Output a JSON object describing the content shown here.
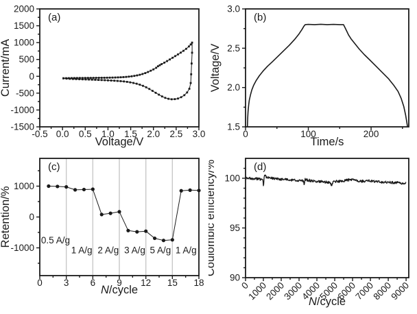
{
  "figure": {
    "background": "#ffffff",
    "ink_color": "#1a1a1a",
    "grid_color": "#c8c8c8"
  },
  "chart_data": [
    {
      "id": "a",
      "type": "line",
      "panel_label": "(a)",
      "xlabel": "Voltage/V",
      "ylabel": "Current/mA",
      "xlim": [
        -0.5,
        3.0
      ],
      "ylim": [
        -1500,
        2000
      ],
      "xticks": [
        -0.5,
        0.0,
        0.5,
        1.0,
        1.5,
        2.0,
        2.5,
        3.0
      ],
      "xtick_labels": [
        "-0.5",
        "0.0",
        "0.5",
        "1.0",
        "1.5",
        "2.0",
        "2.5",
        "3.0"
      ],
      "yticks": [
        -1500,
        -1000,
        -500,
        0,
        500,
        1000,
        1500,
        2000
      ],
      "ytick_labels": [
        "-1500",
        "-1000",
        "-500",
        "0",
        "500",
        "1000",
        "1500",
        "2000"
      ],
      "xminor": [
        -0.25,
        0.25,
        0.75,
        1.25,
        1.75,
        2.25,
        2.75
      ],
      "yminor": [
        -1250,
        -750,
        -250,
        250,
        750,
        1250,
        1750
      ],
      "grid": false,
      "series": [
        {
          "name": "cv-curve",
          "marker": "square",
          "line_width": 1,
          "points": [
            [
              0.02,
              -58
            ],
            [
              0.08,
              -56
            ],
            [
              0.14,
              -55
            ],
            [
              0.2,
              -53
            ],
            [
              0.26,
              -52
            ],
            [
              0.32,
              -51
            ],
            [
              0.38,
              -50
            ],
            [
              0.44,
              -50
            ],
            [
              0.5,
              -49
            ],
            [
              0.56,
              -48
            ],
            [
              0.62,
              -48
            ],
            [
              0.68,
              -47
            ],
            [
              0.74,
              -46
            ],
            [
              0.8,
              -45
            ],
            [
              0.86,
              -44
            ],
            [
              0.92,
              -43
            ],
            [
              0.98,
              -42
            ],
            [
              1.04,
              -40
            ],
            [
              1.1,
              -38
            ],
            [
              1.16,
              -36
            ],
            [
              1.22,
              -33
            ],
            [
              1.28,
              -29
            ],
            [
              1.34,
              -24
            ],
            [
              1.4,
              -18
            ],
            [
              1.46,
              -10
            ],
            [
              1.52,
              0
            ],
            [
              1.58,
              12
            ],
            [
              1.64,
              27
            ],
            [
              1.7,
              45
            ],
            [
              1.76,
              68
            ],
            [
              1.82,
              95
            ],
            [
              1.88,
              128
            ],
            [
              1.94,
              165
            ],
            [
              2.0,
              205
            ],
            [
              2.06,
              252
            ],
            [
              2.1,
              298
            ],
            [
              2.14,
              330
            ],
            [
              2.18,
              362
            ],
            [
              2.24,
              405
            ],
            [
              2.3,
              452
            ],
            [
              2.36,
              500
            ],
            [
              2.42,
              550
            ],
            [
              2.48,
              600
            ],
            [
              2.54,
              650
            ],
            [
              2.6,
              702
            ],
            [
              2.66,
              756
            ],
            [
              2.72,
              815
            ],
            [
              2.78,
              885
            ],
            [
              2.82,
              945
            ],
            [
              2.85,
              1000
            ],
            [
              2.85,
              700
            ],
            [
              2.84,
              380
            ],
            [
              2.83,
              60
            ],
            [
              2.82,
              -200
            ],
            [
              2.79,
              -370
            ],
            [
              2.74,
              -480
            ],
            [
              2.68,
              -560
            ],
            [
              2.61,
              -620
            ],
            [
              2.54,
              -660
            ],
            [
              2.47,
              -678
            ],
            [
              2.4,
              -682
            ],
            [
              2.33,
              -668
            ],
            [
              2.26,
              -640
            ],
            [
              2.19,
              -598
            ],
            [
              2.12,
              -545
            ],
            [
              2.05,
              -490
            ],
            [
              1.98,
              -432
            ],
            [
              1.91,
              -376
            ],
            [
              1.84,
              -326
            ],
            [
              1.77,
              -283
            ],
            [
              1.7,
              -248
            ],
            [
              1.63,
              -220
            ],
            [
              1.56,
              -198
            ],
            [
              1.49,
              -180
            ],
            [
              1.42,
              -165
            ],
            [
              1.35,
              -153
            ],
            [
              1.28,
              -144
            ],
            [
              1.21,
              -137
            ],
            [
              1.14,
              -131
            ],
            [
              1.07,
              -126
            ],
            [
              1.0,
              -121
            ],
            [
              0.93,
              -116
            ],
            [
              0.86,
              -112
            ],
            [
              0.79,
              -108
            ],
            [
              0.72,
              -104
            ],
            [
              0.65,
              -100
            ],
            [
              0.58,
              -96
            ],
            [
              0.51,
              -93
            ],
            [
              0.44,
              -90
            ],
            [
              0.37,
              -86
            ],
            [
              0.3,
              -83
            ],
            [
              0.23,
              -79
            ],
            [
              0.16,
              -74
            ],
            [
              0.09,
              -68
            ],
            [
              0.02,
              -62
            ]
          ]
        }
      ]
    },
    {
      "id": "b",
      "type": "line",
      "panel_label": "(b)",
      "xlabel": "Time/s",
      "ylabel": "Voltage/V",
      "xlim": [
        0,
        260
      ],
      "ylim": [
        1.5,
        3.0
      ],
      "xticks": [
        0,
        100,
        200
      ],
      "xtick_labels": [
        "0",
        "100",
        "200"
      ],
      "yticks": [
        1.5,
        2.0,
        2.5,
        3.0
      ],
      "ytick_labels": [
        "1.5",
        "2.0",
        "2.5",
        "3.0"
      ],
      "xminor": [
        50,
        150,
        250
      ],
      "yminor": [
        1.75,
        2.25,
        2.75
      ],
      "grid": false,
      "series": [
        {
          "name": "charge-discharge",
          "marker": "none",
          "line_width": 1.6,
          "points": [
            [
              3,
              1.5
            ],
            [
              3.5,
              1.62
            ],
            [
              4,
              1.7
            ],
            [
              5,
              1.78
            ],
            [
              6,
              1.84
            ],
            [
              8,
              1.91
            ],
            [
              10,
              1.97
            ],
            [
              13,
              2.03
            ],
            [
              17,
              2.09
            ],
            [
              22,
              2.15
            ],
            [
              28,
              2.21
            ],
            [
              35,
              2.27
            ],
            [
              43,
              2.33
            ],
            [
              52,
              2.4
            ],
            [
              61,
              2.47
            ],
            [
              70,
              2.54
            ],
            [
              78,
              2.61
            ],
            [
              85,
              2.68
            ],
            [
              90,
              2.74
            ],
            [
              93,
              2.78
            ],
            [
              95,
              2.8
            ],
            [
              100,
              2.803
            ],
            [
              110,
              2.8
            ],
            [
              120,
              2.805
            ],
            [
              130,
              2.8
            ],
            [
              140,
              2.803
            ],
            [
              150,
              2.8
            ],
            [
              156,
              2.8
            ],
            [
              158,
              2.77
            ],
            [
              161,
              2.72
            ],
            [
              164,
              2.67
            ],
            [
              168,
              2.62
            ],
            [
              174,
              2.56
            ],
            [
              181,
              2.49
            ],
            [
              189,
              2.42
            ],
            [
              198,
              2.35
            ],
            [
              208,
              2.27
            ],
            [
              218,
              2.19
            ],
            [
              228,
              2.11
            ],
            [
              236,
              2.03
            ],
            [
              243,
              1.95
            ],
            [
              248,
              1.86
            ],
            [
              252,
              1.76
            ],
            [
              255,
              1.65
            ],
            [
              257,
              1.55
            ],
            [
              258,
              1.5
            ]
          ]
        }
      ]
    },
    {
      "id": "c",
      "type": "line",
      "panel_label": "(c)",
      "xlabel": "N/cycle",
      "xlabel_italic_chars": 1,
      "ylabel": "Retention/%",
      "xlim": [
        0,
        18
      ],
      "ylim": [
        -1900,
        1900
      ],
      "xticks": [
        0,
        3,
        6,
        9,
        12,
        15,
        18
      ],
      "xtick_labels": [
        "0",
        "3",
        "6",
        "9",
        "12",
        "15",
        "18"
      ],
      "yticks": [
        -1000,
        0,
        1000
      ],
      "ytick_labels": [
        "-1000",
        "0",
        "1000"
      ],
      "xminor": [
        1.5,
        4.5,
        7.5,
        10.5,
        13.5,
        16.5
      ],
      "yminor": [
        -1500,
        -500,
        500,
        1500
      ],
      "grid": true,
      "gridlines_x": [
        3,
        6,
        9,
        12,
        15
      ],
      "annotations": [
        {
          "text": "0.5 A/g",
          "x": 0.15,
          "y": -850
        },
        {
          "text": "1 A/g",
          "x": 3.55,
          "y": -1180
        },
        {
          "text": "2 A/g",
          "x": 6.55,
          "y": -1180
        },
        {
          "text": "3 A/g",
          "x": 9.55,
          "y": -1180
        },
        {
          "text": "5 A/g",
          "x": 12.45,
          "y": -1180
        },
        {
          "text": "1 A/g",
          "x": 15.35,
          "y": -1180
        }
      ],
      "series": [
        {
          "name": "rate-retention",
          "marker": "circle",
          "line_width": 1,
          "points": [
            [
              1,
              1000
            ],
            [
              2,
              990
            ],
            [
              3,
              975
            ],
            [
              4,
              880
            ],
            [
              5,
              890
            ],
            [
              6,
              900
            ],
            [
              7,
              80
            ],
            [
              8,
              120
            ],
            [
              9,
              170
            ],
            [
              10,
              -440
            ],
            [
              11,
              -480
            ],
            [
              12,
              -460
            ],
            [
              13,
              -690
            ],
            [
              14,
              -760
            ],
            [
              15,
              -740
            ],
            [
              16,
              850
            ],
            [
              17,
              870
            ],
            [
              18,
              860
            ]
          ]
        }
      ]
    },
    {
      "id": "d",
      "type": "line",
      "panel_label": "(d)",
      "xlabel": "N/cycle",
      "xlabel_italic_chars": 1,
      "ylabel": "Coulombic efficiency/%",
      "xlim": [
        0,
        9150
      ],
      "ylim": [
        90,
        102
      ],
      "xticks": [
        0,
        1000,
        2000,
        3000,
        4000,
        5000,
        6000,
        7000,
        8000,
        9000
      ],
      "xtick_labels": [
        "0",
        "1000",
        "2000",
        "3000",
        "4000",
        "5000",
        "6000",
        "7000",
        "8000",
        "9000"
      ],
      "xtick_rotation": -45,
      "yticks": [
        90,
        95,
        100
      ],
      "ytick_labels": [
        "90",
        "95",
        "100"
      ],
      "xminor": [
        500,
        1500,
        2500,
        3500,
        4500,
        5500,
        6500,
        7500,
        8500
      ],
      "yminor": [
        91,
        92,
        93,
        94,
        96,
        97,
        98,
        99,
        101
      ],
      "grid": false,
      "series": [
        {
          "name": "coulombic-efficiency",
          "marker": "none",
          "line_width": 1.3,
          "render": "noisy",
          "noise_amplitude": 0.13,
          "sample_step": 20,
          "trend": [
            [
              0,
              100.05
            ],
            [
              200,
              100.0
            ],
            [
              400,
              99.95
            ],
            [
              600,
              99.95
            ],
            [
              800,
              99.9
            ],
            [
              950,
              99.9
            ],
            [
              990,
              99.5
            ],
            [
              1010,
              99.1
            ],
            [
              1030,
              99.9
            ],
            [
              1060,
              100.3
            ],
            [
              1150,
              100.15
            ],
            [
              1300,
              100.05
            ],
            [
              1500,
              100.0
            ],
            [
              1700,
              99.95
            ],
            [
              1900,
              99.9
            ],
            [
              2100,
              99.9
            ],
            [
              2300,
              99.85
            ],
            [
              2500,
              99.8
            ],
            [
              2700,
              99.8
            ],
            [
              2900,
              99.75
            ],
            [
              3100,
              99.75
            ],
            [
              3250,
              99.75
            ],
            [
              3290,
              99.35
            ],
            [
              3330,
              99.9
            ],
            [
              3500,
              99.8
            ],
            [
              3700,
              99.75
            ],
            [
              3900,
              99.7
            ],
            [
              4100,
              99.7
            ],
            [
              4300,
              99.65
            ],
            [
              4500,
              99.6
            ],
            [
              4700,
              99.6
            ],
            [
              4820,
              99.3
            ],
            [
              4900,
              99.6
            ],
            [
              5100,
              99.7
            ],
            [
              5300,
              99.7
            ],
            [
              5500,
              99.75
            ],
            [
              5700,
              99.8
            ],
            [
              5900,
              99.85
            ],
            [
              6100,
              99.8
            ],
            [
              6300,
              99.75
            ],
            [
              6500,
              99.7
            ],
            [
              6700,
              99.7
            ],
            [
              6900,
              99.75
            ],
            [
              7100,
              99.7
            ],
            [
              7300,
              99.65
            ],
            [
              7500,
              99.65
            ],
            [
              7700,
              99.6
            ],
            [
              7900,
              99.6
            ],
            [
              8100,
              99.6
            ],
            [
              8300,
              99.55
            ],
            [
              8500,
              99.55
            ],
            [
              8700,
              99.5
            ],
            [
              9000,
              99.5
            ]
          ]
        }
      ]
    }
  ]
}
